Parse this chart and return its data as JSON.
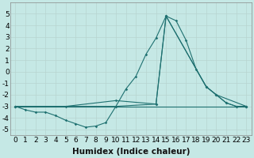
{
  "bg_color": "#c5e8e5",
  "grid_color": "#b8d4d0",
  "line_color": "#1e7070",
  "xlabel": "Humidex (Indice chaleur)",
  "xlabel_fontsize": 7.5,
  "tick_fontsize": 6.5,
  "ylim": [
    -5.5,
    6.0
  ],
  "xlim": [
    -0.5,
    23.5
  ],
  "yticks": [
    -5,
    -4,
    -3,
    -2,
    -1,
    0,
    1,
    2,
    3,
    4,
    5
  ],
  "xtick_labels": [
    "0",
    "1",
    "2",
    "3",
    "4",
    "5",
    "6",
    "7",
    "8",
    "9",
    "10",
    "11",
    "12",
    "13",
    "14",
    "15",
    "16",
    "17",
    "18",
    "19",
    "20",
    "21",
    "22",
    "23"
  ],
  "xticks": [
    0,
    1,
    2,
    3,
    4,
    5,
    6,
    7,
    8,
    9,
    10,
    11,
    12,
    13,
    14,
    15,
    16,
    17,
    18,
    19,
    20,
    21,
    22,
    23
  ],
  "series": [
    {
      "x": [
        0,
        1,
        2,
        3,
        4,
        5,
        6,
        7,
        8,
        9,
        10,
        11,
        12,
        13,
        14,
        15,
        16,
        17,
        18,
        19,
        20,
        21,
        22,
        23
      ],
      "y": [
        -3.0,
        -3.3,
        -3.5,
        -3.5,
        -3.8,
        -4.2,
        -4.5,
        -4.8,
        -4.7,
        -4.4,
        -3.0,
        -1.5,
        -0.4,
        1.5,
        2.9,
        4.8,
        4.4,
        2.7,
        0.2,
        -1.3,
        -2.0,
        -2.7,
        -3.0,
        -3.0
      ]
    },
    {
      "x": [
        0,
        23
      ],
      "y": [
        -3.0,
        -3.0
      ]
    },
    {
      "x": [
        0,
        10,
        14,
        15,
        19,
        20,
        21,
        22,
        23
      ],
      "y": [
        -3.0,
        -3.0,
        -2.8,
        4.8,
        -1.3,
        -2.0,
        -2.7,
        -3.0,
        -3.0
      ]
    },
    {
      "x": [
        0,
        5,
        10,
        14,
        15,
        19,
        20,
        23
      ],
      "y": [
        -3.0,
        -3.0,
        -2.5,
        -2.8,
        4.8,
        -1.3,
        -2.0,
        -3.0
      ]
    }
  ]
}
